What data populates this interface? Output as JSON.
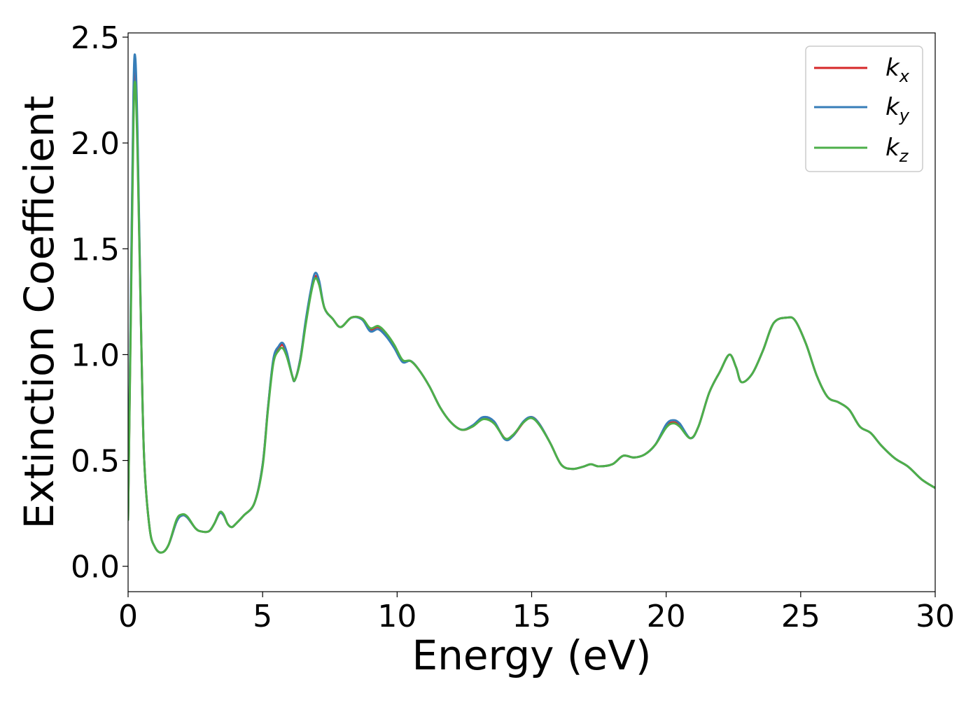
{
  "chart_data": {
    "type": "line",
    "xlabel": "Energy (eV)",
    "ylabel": "Extinction Coefficient",
    "xlim": [
      0,
      30
    ],
    "ylim": [
      -0.12,
      2.52
    ],
    "xticks": [
      0,
      5,
      10,
      15,
      20,
      25,
      30
    ],
    "xtick_labels": [
      "0",
      "5",
      "10",
      "15",
      "20",
      "25",
      "30"
    ],
    "yticks": [
      0.0,
      0.5,
      1.0,
      1.5,
      2.0,
      2.5
    ],
    "ytick_labels": [
      "0.0",
      "0.5",
      "1.0",
      "1.5",
      "2.0",
      "2.5"
    ],
    "grid": false,
    "legend_position": "top-right",
    "series": [
      {
        "name": "k_x",
        "label_base": "k",
        "label_sub": "x",
        "color": "#d62728",
        "points": [
          [
            0,
            0.22
          ],
          [
            0.1,
            1.2
          ],
          [
            0.2,
            2.2
          ],
          [
            0.27,
            2.35
          ],
          [
            0.35,
            2.0
          ],
          [
            0.5,
            1.0
          ],
          [
            0.6,
            0.5
          ],
          [
            0.8,
            0.18
          ],
          [
            1.0,
            0.09
          ],
          [
            1.25,
            0.065
          ],
          [
            1.5,
            0.1
          ],
          [
            1.8,
            0.21
          ],
          [
            2.0,
            0.24
          ],
          [
            2.2,
            0.23
          ],
          [
            2.5,
            0.18
          ],
          [
            2.7,
            0.165
          ],
          [
            3.0,
            0.165
          ],
          [
            3.2,
            0.2
          ],
          [
            3.4,
            0.25
          ],
          [
            3.55,
            0.24
          ],
          [
            3.7,
            0.2
          ],
          [
            3.85,
            0.185
          ],
          [
            4.0,
            0.2
          ],
          [
            4.3,
            0.24
          ],
          [
            4.7,
            0.3
          ],
          [
            5.0,
            0.48
          ],
          [
            5.2,
            0.75
          ],
          [
            5.4,
            0.97
          ],
          [
            5.6,
            1.03
          ],
          [
            5.75,
            1.045
          ],
          [
            5.9,
            1.0
          ],
          [
            6.1,
            0.9
          ],
          [
            6.2,
            0.88
          ],
          [
            6.4,
            0.98
          ],
          [
            6.6,
            1.15
          ],
          [
            6.8,
            1.3
          ],
          [
            6.95,
            1.37
          ],
          [
            7.1,
            1.34
          ],
          [
            7.3,
            1.22
          ],
          [
            7.6,
            1.17
          ],
          [
            7.9,
            1.13
          ],
          [
            8.3,
            1.175
          ],
          [
            8.7,
            1.17
          ],
          [
            9.0,
            1.12
          ],
          [
            9.3,
            1.13
          ],
          [
            9.6,
            1.09
          ],
          [
            9.9,
            1.04
          ],
          [
            10.2,
            0.97
          ],
          [
            10.5,
            0.97
          ],
          [
            10.8,
            0.93
          ],
          [
            11.2,
            0.85
          ],
          [
            11.6,
            0.75
          ],
          [
            12.0,
            0.68
          ],
          [
            12.4,
            0.645
          ],
          [
            12.8,
            0.66
          ],
          [
            13.2,
            0.7
          ],
          [
            13.6,
            0.68
          ],
          [
            14.0,
            0.605
          ],
          [
            14.3,
            0.615
          ],
          [
            14.7,
            0.68
          ],
          [
            15.0,
            0.705
          ],
          [
            15.3,
            0.67
          ],
          [
            15.7,
            0.58
          ],
          [
            16.1,
            0.48
          ],
          [
            16.5,
            0.46
          ],
          [
            16.9,
            0.47
          ],
          [
            17.2,
            0.482
          ],
          [
            17.5,
            0.472
          ],
          [
            18.0,
            0.482
          ],
          [
            18.4,
            0.522
          ],
          [
            18.8,
            0.514
          ],
          [
            19.2,
            0.528
          ],
          [
            19.6,
            0.575
          ],
          [
            20.0,
            0.66
          ],
          [
            20.25,
            0.68
          ],
          [
            20.5,
            0.665
          ],
          [
            20.9,
            0.605
          ],
          [
            21.2,
            0.66
          ],
          [
            21.6,
            0.82
          ],
          [
            22.0,
            0.92
          ],
          [
            22.35,
            1.0
          ],
          [
            22.6,
            0.94
          ],
          [
            22.8,
            0.87
          ],
          [
            23.2,
            0.91
          ],
          [
            23.6,
            1.02
          ],
          [
            24.0,
            1.15
          ],
          [
            24.5,
            1.175
          ],
          [
            24.8,
            1.16
          ],
          [
            25.2,
            1.05
          ],
          [
            25.6,
            0.9
          ],
          [
            26.0,
            0.8
          ],
          [
            26.4,
            0.775
          ],
          [
            26.8,
            0.74
          ],
          [
            27.2,
            0.66
          ],
          [
            27.6,
            0.63
          ],
          [
            28.0,
            0.57
          ],
          [
            28.5,
            0.51
          ],
          [
            29.0,
            0.47
          ],
          [
            29.5,
            0.41
          ],
          [
            30.0,
            0.37
          ]
        ]
      },
      {
        "name": "k_y",
        "label_base": "k",
        "label_sub": "y",
        "color": "#377eb8",
        "points": [
          [
            0,
            0.22
          ],
          [
            0.1,
            1.25
          ],
          [
            0.2,
            2.25
          ],
          [
            0.27,
            2.4
          ],
          [
            0.35,
            2.05
          ],
          [
            0.5,
            1.0
          ],
          [
            0.6,
            0.5
          ],
          [
            0.8,
            0.18
          ],
          [
            1.0,
            0.09
          ],
          [
            1.25,
            0.065
          ],
          [
            1.5,
            0.1
          ],
          [
            1.8,
            0.21
          ],
          [
            2.0,
            0.24
          ],
          [
            2.2,
            0.23
          ],
          [
            2.5,
            0.18
          ],
          [
            2.7,
            0.165
          ],
          [
            3.0,
            0.165
          ],
          [
            3.2,
            0.2
          ],
          [
            3.4,
            0.25
          ],
          [
            3.55,
            0.24
          ],
          [
            3.7,
            0.2
          ],
          [
            3.85,
            0.185
          ],
          [
            4.0,
            0.2
          ],
          [
            4.3,
            0.24
          ],
          [
            4.7,
            0.3
          ],
          [
            5.0,
            0.48
          ],
          [
            5.2,
            0.75
          ],
          [
            5.4,
            0.98
          ],
          [
            5.6,
            1.04
          ],
          [
            5.75,
            1.055
          ],
          [
            5.9,
            1.01
          ],
          [
            6.1,
            0.9
          ],
          [
            6.2,
            0.88
          ],
          [
            6.4,
            0.98
          ],
          [
            6.6,
            1.16
          ],
          [
            6.8,
            1.31
          ],
          [
            6.95,
            1.385
          ],
          [
            7.1,
            1.35
          ],
          [
            7.3,
            1.22
          ],
          [
            7.6,
            1.17
          ],
          [
            7.9,
            1.13
          ],
          [
            8.3,
            1.175
          ],
          [
            8.7,
            1.165
          ],
          [
            9.0,
            1.11
          ],
          [
            9.3,
            1.12
          ],
          [
            9.6,
            1.085
          ],
          [
            9.9,
            1.03
          ],
          [
            10.2,
            0.965
          ],
          [
            10.5,
            0.97
          ],
          [
            10.8,
            0.93
          ],
          [
            11.2,
            0.85
          ],
          [
            11.6,
            0.75
          ],
          [
            12.0,
            0.68
          ],
          [
            12.4,
            0.645
          ],
          [
            12.8,
            0.665
          ],
          [
            13.2,
            0.705
          ],
          [
            13.6,
            0.685
          ],
          [
            14.0,
            0.6
          ],
          [
            14.3,
            0.615
          ],
          [
            14.7,
            0.685
          ],
          [
            15.0,
            0.705
          ],
          [
            15.3,
            0.67
          ],
          [
            15.7,
            0.58
          ],
          [
            16.1,
            0.48
          ],
          [
            16.5,
            0.46
          ],
          [
            16.9,
            0.47
          ],
          [
            17.2,
            0.482
          ],
          [
            17.5,
            0.472
          ],
          [
            18.0,
            0.482
          ],
          [
            18.4,
            0.522
          ],
          [
            18.8,
            0.514
          ],
          [
            19.2,
            0.528
          ],
          [
            19.6,
            0.575
          ],
          [
            20.0,
            0.67
          ],
          [
            20.25,
            0.69
          ],
          [
            20.5,
            0.675
          ],
          [
            20.9,
            0.605
          ],
          [
            21.2,
            0.66
          ],
          [
            21.6,
            0.82
          ],
          [
            22.0,
            0.92
          ],
          [
            22.35,
            1.0
          ],
          [
            22.6,
            0.94
          ],
          [
            22.8,
            0.87
          ],
          [
            23.2,
            0.91
          ],
          [
            23.6,
            1.02
          ],
          [
            24.0,
            1.15
          ],
          [
            24.5,
            1.175
          ],
          [
            24.8,
            1.16
          ],
          [
            25.2,
            1.05
          ],
          [
            25.6,
            0.9
          ],
          [
            26.0,
            0.8
          ],
          [
            26.4,
            0.775
          ],
          [
            26.8,
            0.74
          ],
          [
            27.2,
            0.66
          ],
          [
            27.6,
            0.63
          ],
          [
            28.0,
            0.57
          ],
          [
            28.5,
            0.51
          ],
          [
            29.0,
            0.47
          ],
          [
            29.5,
            0.41
          ],
          [
            30.0,
            0.37
          ]
        ]
      },
      {
        "name": "k_z",
        "label_base": "k",
        "label_sub": "z",
        "color": "#4daf4a",
        "points": [
          [
            0,
            0.22
          ],
          [
            0.1,
            1.15
          ],
          [
            0.2,
            2.1
          ],
          [
            0.27,
            2.28
          ],
          [
            0.35,
            1.95
          ],
          [
            0.5,
            1.0
          ],
          [
            0.6,
            0.5
          ],
          [
            0.8,
            0.18
          ],
          [
            1.0,
            0.09
          ],
          [
            1.25,
            0.065
          ],
          [
            1.5,
            0.1
          ],
          [
            1.8,
            0.22
          ],
          [
            2.0,
            0.245
          ],
          [
            2.2,
            0.235
          ],
          [
            2.5,
            0.18
          ],
          [
            2.7,
            0.165
          ],
          [
            3.0,
            0.165
          ],
          [
            3.2,
            0.2
          ],
          [
            3.4,
            0.255
          ],
          [
            3.55,
            0.245
          ],
          [
            3.7,
            0.2
          ],
          [
            3.85,
            0.185
          ],
          [
            4.0,
            0.2
          ],
          [
            4.3,
            0.24
          ],
          [
            4.7,
            0.3
          ],
          [
            5.0,
            0.47
          ],
          [
            5.2,
            0.74
          ],
          [
            5.4,
            0.96
          ],
          [
            5.6,
            1.02
          ],
          [
            5.75,
            1.03
          ],
          [
            5.9,
            0.99
          ],
          [
            6.1,
            0.9
          ],
          [
            6.2,
            0.88
          ],
          [
            6.4,
            0.97
          ],
          [
            6.6,
            1.14
          ],
          [
            6.8,
            1.29
          ],
          [
            6.95,
            1.36
          ],
          [
            7.1,
            1.33
          ],
          [
            7.3,
            1.22
          ],
          [
            7.6,
            1.17
          ],
          [
            7.9,
            1.13
          ],
          [
            8.3,
            1.175
          ],
          [
            8.7,
            1.17
          ],
          [
            9.0,
            1.125
          ],
          [
            9.3,
            1.135
          ],
          [
            9.6,
            1.1
          ],
          [
            9.9,
            1.045
          ],
          [
            10.2,
            0.975
          ],
          [
            10.5,
            0.97
          ],
          [
            10.8,
            0.93
          ],
          [
            11.2,
            0.85
          ],
          [
            11.6,
            0.75
          ],
          [
            12.0,
            0.68
          ],
          [
            12.4,
            0.645
          ],
          [
            12.8,
            0.66
          ],
          [
            13.2,
            0.695
          ],
          [
            13.6,
            0.675
          ],
          [
            14.0,
            0.605
          ],
          [
            14.3,
            0.62
          ],
          [
            14.7,
            0.68
          ],
          [
            15.0,
            0.7
          ],
          [
            15.3,
            0.665
          ],
          [
            15.7,
            0.58
          ],
          [
            16.1,
            0.48
          ],
          [
            16.5,
            0.46
          ],
          [
            16.9,
            0.47
          ],
          [
            17.2,
            0.482
          ],
          [
            17.5,
            0.472
          ],
          [
            18.0,
            0.482
          ],
          [
            18.4,
            0.522
          ],
          [
            18.8,
            0.514
          ],
          [
            19.2,
            0.528
          ],
          [
            19.6,
            0.575
          ],
          [
            20.0,
            0.655
          ],
          [
            20.25,
            0.675
          ],
          [
            20.5,
            0.66
          ],
          [
            20.9,
            0.605
          ],
          [
            21.2,
            0.66
          ],
          [
            21.6,
            0.82
          ],
          [
            22.0,
            0.92
          ],
          [
            22.35,
            1.0
          ],
          [
            22.6,
            0.94
          ],
          [
            22.8,
            0.87
          ],
          [
            23.2,
            0.91
          ],
          [
            23.6,
            1.02
          ],
          [
            24.0,
            1.15
          ],
          [
            24.5,
            1.175
          ],
          [
            24.8,
            1.16
          ],
          [
            25.2,
            1.05
          ],
          [
            25.6,
            0.9
          ],
          [
            26.0,
            0.8
          ],
          [
            26.4,
            0.775
          ],
          [
            26.8,
            0.74
          ],
          [
            27.2,
            0.66
          ],
          [
            27.6,
            0.63
          ],
          [
            28.0,
            0.57
          ],
          [
            28.5,
            0.51
          ],
          [
            29.0,
            0.47
          ],
          [
            29.5,
            0.41
          ],
          [
            30.0,
            0.37
          ]
        ]
      }
    ]
  }
}
